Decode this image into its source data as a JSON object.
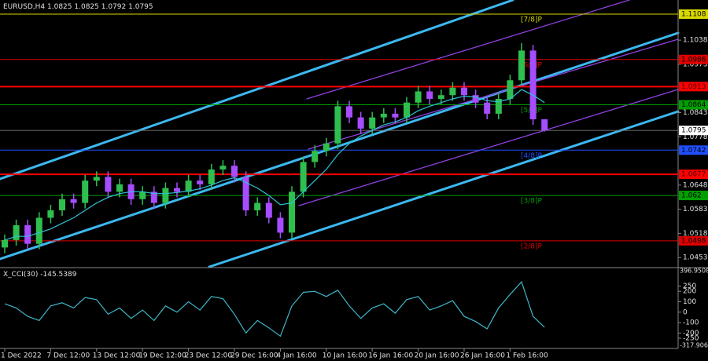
{
  "chart_data": {
    "type": "candlestick",
    "symbol": "EURUSD,H4",
    "categories": [
      "1 Dec 2022",
      null,
      null,
      null,
      "7 Dec 12:00",
      null,
      null,
      null,
      "13 Dec 12:00",
      null,
      null,
      null,
      "19 Dec 12:00",
      null,
      null,
      null,
      "23 Dec 12:00",
      null,
      null,
      null,
      "29 Dec 16:00",
      null,
      null,
      null,
      "4 Jan 16:00",
      null,
      null,
      null,
      "10 Jan 16:00",
      null,
      null,
      null,
      "16 Jan 16:00",
      null,
      null,
      null,
      "20 Jan 16:00",
      null,
      null,
      null,
      "26 Jan 16:00",
      null,
      null,
      null,
      "1 Feb 16:00",
      null,
      null,
      null
    ],
    "open": [
      1.048,
      1.05,
      1.054,
      1.049,
      1.056,
      1.058,
      1.061,
      1.06,
      1.066,
      1.067,
      1.063,
      1.065,
      1.061,
      1.063,
      1.06,
      1.064,
      1.063,
      1.066,
      1.065,
      1.069,
      1.07,
      1.067,
      1.058,
      1.06,
      1.056,
      1.052,
      1.063,
      1.071,
      1.074,
      1.076,
      1.086,
      1.083,
      1.08,
      1.083,
      1.084,
      1.083,
      1.087,
      1.09,
      1.088,
      1.089,
      1.091,
      1.089,
      1.087,
      1.084,
      1.088,
      1.093,
      1.101,
      1.0825
    ],
    "high": [
      1.0515,
      1.0555,
      1.0555,
      1.0575,
      1.0595,
      1.0625,
      1.0625,
      1.0675,
      1.0685,
      1.0685,
      1.0665,
      1.0665,
      1.0645,
      1.0645,
      1.0655,
      1.0655,
      1.0675,
      1.0675,
      1.0705,
      1.0715,
      1.0715,
      1.0685,
      1.0615,
      1.0615,
      1.0575,
      1.0645,
      1.0725,
      1.0755,
      1.0775,
      1.0875,
      1.0875,
      1.0845,
      1.0845,
      1.0855,
      1.0855,
      1.0885,
      1.0915,
      1.0915,
      1.0905,
      1.0925,
      1.0925,
      1.0905,
      1.0885,
      1.0895,
      1.0945,
      1.103,
      1.1025,
      1.0825
    ],
    "low": [
      1.0465,
      1.0485,
      1.0475,
      1.0475,
      1.0545,
      1.0565,
      1.0585,
      1.0585,
      1.0645,
      1.0615,
      1.0615,
      1.0595,
      1.0595,
      1.0585,
      1.0585,
      1.0615,
      1.0615,
      1.0635,
      1.0635,
      1.0675,
      1.0655,
      1.0565,
      1.0565,
      1.0545,
      1.0505,
      1.0505,
      1.0615,
      1.0695,
      1.0725,
      1.0745,
      1.0815,
      1.0785,
      1.0785,
      1.0815,
      1.0815,
      1.0815,
      1.0855,
      1.0865,
      1.0865,
      1.0875,
      1.0875,
      1.0855,
      1.0825,
      1.0825,
      1.0865,
      1.0915,
      1.081,
      1.0792
    ],
    "close": [
      1.05,
      1.054,
      1.049,
      1.056,
      1.058,
      1.061,
      1.06,
      1.066,
      1.067,
      1.063,
      1.065,
      1.061,
      1.063,
      1.06,
      1.064,
      1.063,
      1.066,
      1.065,
      1.069,
      1.07,
      1.067,
      1.058,
      1.06,
      1.056,
      1.052,
      1.063,
      1.071,
      1.074,
      1.076,
      1.086,
      1.083,
      1.08,
      1.083,
      1.084,
      1.083,
      1.087,
      1.09,
      1.088,
      1.089,
      1.091,
      1.089,
      1.087,
      1.084,
      1.088,
      1.093,
      1.101,
      1.0825,
      1.0795
    ],
    "bull_color": "#2fbf4f",
    "bear_color": "#a64dff",
    "ma": {
      "color": "#2ec4d6",
      "values": [
        1.05,
        1.051,
        1.051,
        1.052,
        1.053,
        1.0545,
        1.056,
        1.058,
        1.06,
        1.0615,
        1.0625,
        1.063,
        1.063,
        1.0625,
        1.0625,
        1.0628,
        1.0632,
        1.0638,
        1.0648,
        1.066,
        1.0668,
        1.0655,
        1.064,
        1.062,
        1.0595,
        1.06,
        1.063,
        1.066,
        1.069,
        1.073,
        1.076,
        1.078,
        1.0795,
        1.081,
        1.0818,
        1.083,
        1.0848,
        1.086,
        1.087,
        1.088,
        1.0887,
        1.0885,
        1.0875,
        1.0872,
        1.088,
        1.0905,
        1.089,
        1.087
      ]
    },
    "ylim": [
      1.0428,
      1.1146
    ],
    "yticks": [
      1.0453,
      1.0518,
      1.0583,
      1.0648,
      1.0778,
      1.0843,
      1.0973,
      1.1038
    ],
    "levels": [
      {
        "name": "[7/8]P",
        "value": 1.1108,
        "color": "#d8d800"
      },
      {
        "name": "[6/8]P",
        "value": 1.0986,
        "color": "#e00000"
      },
      {
        "name": "[5/8]P",
        "value": 1.0864,
        "color": "#00a000"
      },
      {
        "name": "[4/8]P",
        "value": 1.0742,
        "color": "#2050ff"
      },
      {
        "name": "[3/8]P",
        "value": 1.062,
        "color": "#00a000"
      },
      {
        "name": "[2/8]P",
        "value": 1.0498,
        "color": "#e00000"
      }
    ],
    "lines": [
      {
        "value": 1.0913,
        "color": "#ff0000"
      },
      {
        "value": 1.0677,
        "color": "#ff0000"
      }
    ],
    "indicator": {
      "type": "line",
      "title": "X_CCI(30)",
      "color": "#3fb6c8",
      "values": [
        80,
        40,
        -40,
        -80,
        60,
        90,
        40,
        140,
        120,
        -20,
        40,
        -60,
        20,
        -80,
        60,
        0,
        100,
        20,
        150,
        130,
        -20,
        -200,
        -80,
        -150,
        -230,
        60,
        190,
        200,
        150,
        210,
        60,
        -60,
        40,
        80,
        -10,
        120,
        150,
        20,
        60,
        110,
        -40,
        -90,
        -160,
        40,
        170,
        290,
        -40,
        -145.5389
      ],
      "ylim": [
        -317.9063,
        396.9508
      ],
      "yticks": [
        -250,
        -200,
        -100,
        0,
        100,
        200,
        250
      ]
    }
  }
}
